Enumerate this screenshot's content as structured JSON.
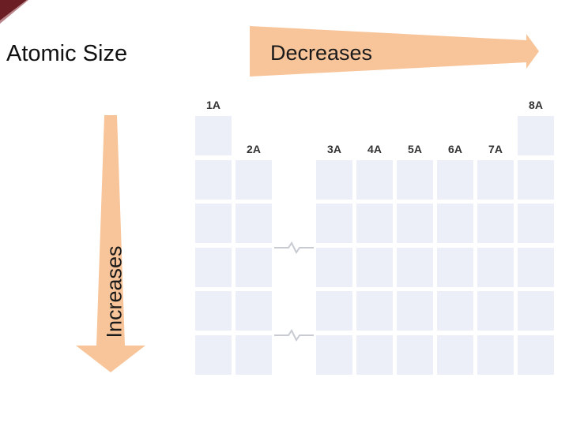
{
  "title": "Atomic Size",
  "trends": {
    "across_period": "Decreases",
    "down_group": "Increases"
  },
  "colors": {
    "arrow_fill": "#f8c59a",
    "cell_fill": "#eceff7",
    "corner_accent": "#6b1f24",
    "break_line": "#c8cbd1"
  },
  "icons": {
    "corner": "corner-wedge-icon",
    "across": "arrow-right-icon",
    "down": "arrow-down-icon",
    "break": "table-break-icon"
  },
  "table": {
    "groups": [
      {
        "label": "1A",
        "rows": [
          1,
          2,
          3,
          4,
          5,
          6
        ]
      },
      {
        "label": "2A",
        "rows": [
          2,
          3,
          4,
          5,
          6
        ]
      },
      {
        "label": "3A",
        "rows": [
          2,
          3,
          4,
          5,
          6
        ]
      },
      {
        "label": "4A",
        "rows": [
          2,
          3,
          4,
          5,
          6
        ]
      },
      {
        "label": "5A",
        "rows": [
          2,
          3,
          4,
          5,
          6
        ]
      },
      {
        "label": "6A",
        "rows": [
          2,
          3,
          4,
          5,
          6
        ]
      },
      {
        "label": "7A",
        "rows": [
          2,
          3,
          4,
          5,
          6
        ]
      },
      {
        "label": "8A",
        "rows": [
          1,
          2,
          3,
          4,
          5,
          6
        ]
      }
    ],
    "break_rows": [
      4,
      6
    ]
  }
}
